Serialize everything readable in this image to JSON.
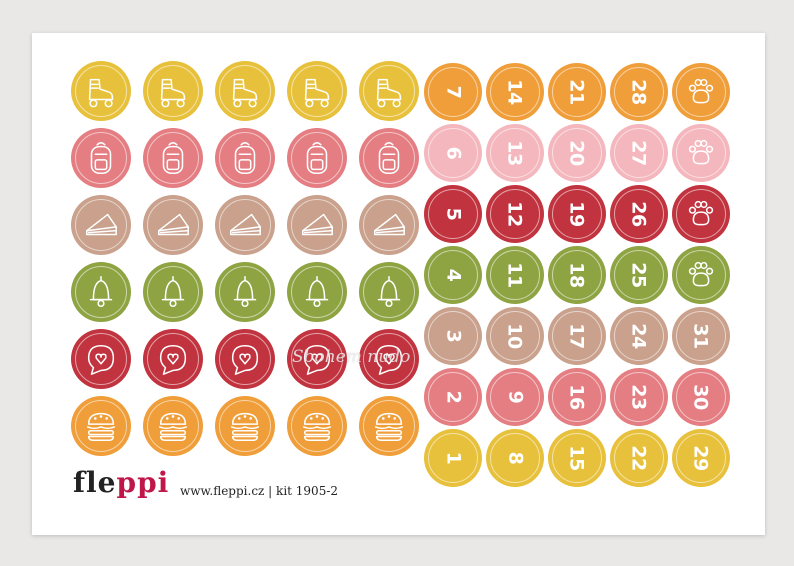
{
  "colors": {
    "yellow": "#e8c13c",
    "pink": "#e47e83",
    "tan": "#c9a18c",
    "green": "#8ea443",
    "red": "#c1333f",
    "orange": "#f09e39",
    "light_pink": "#f4b7bd"
  },
  "icon_rows": [
    {
      "icon": "roller-skate-icon",
      "color": "yellow"
    },
    {
      "icon": "backpack-icon",
      "color": "pink"
    },
    {
      "icon": "cake-slice-icon",
      "color": "tan"
    },
    {
      "icon": "bell-icon",
      "color": "green"
    },
    {
      "icon": "heart-bubble-icon",
      "color": "red"
    },
    {
      "icon": "burger-icon",
      "color": "orange"
    }
  ],
  "number_rows": [
    {
      "color": "orange",
      "labels": [
        "7",
        "14",
        "21",
        "28"
      ],
      "end_icon": "paw-icon"
    },
    {
      "color": "light_pink",
      "labels": [
        "6",
        "13",
        "20",
        "27"
      ],
      "end_icon": "paw-icon"
    },
    {
      "color": "red",
      "labels": [
        "5",
        "12",
        "19",
        "26"
      ],
      "end_icon": "paw-icon"
    },
    {
      "color": "green",
      "labels": [
        "4",
        "11",
        "18",
        "25"
      ],
      "end_icon": "paw-icon"
    },
    {
      "color": "tan",
      "labels": [
        "3",
        "10",
        "17",
        "24",
        "31"
      ]
    },
    {
      "color": "pink",
      "labels": [
        "2",
        "9",
        "16",
        "23",
        "30"
      ]
    },
    {
      "color": "yellow",
      "labels": [
        "1",
        "8",
        "15",
        "22",
        "29"
      ]
    }
  ],
  "brand": {
    "main": "fle",
    "accent": "ppi"
  },
  "footer": {
    "text": "www.fleppi.cz | kit 1905-2"
  },
  "watermark": {
    "text": "Sbohem nudo"
  }
}
